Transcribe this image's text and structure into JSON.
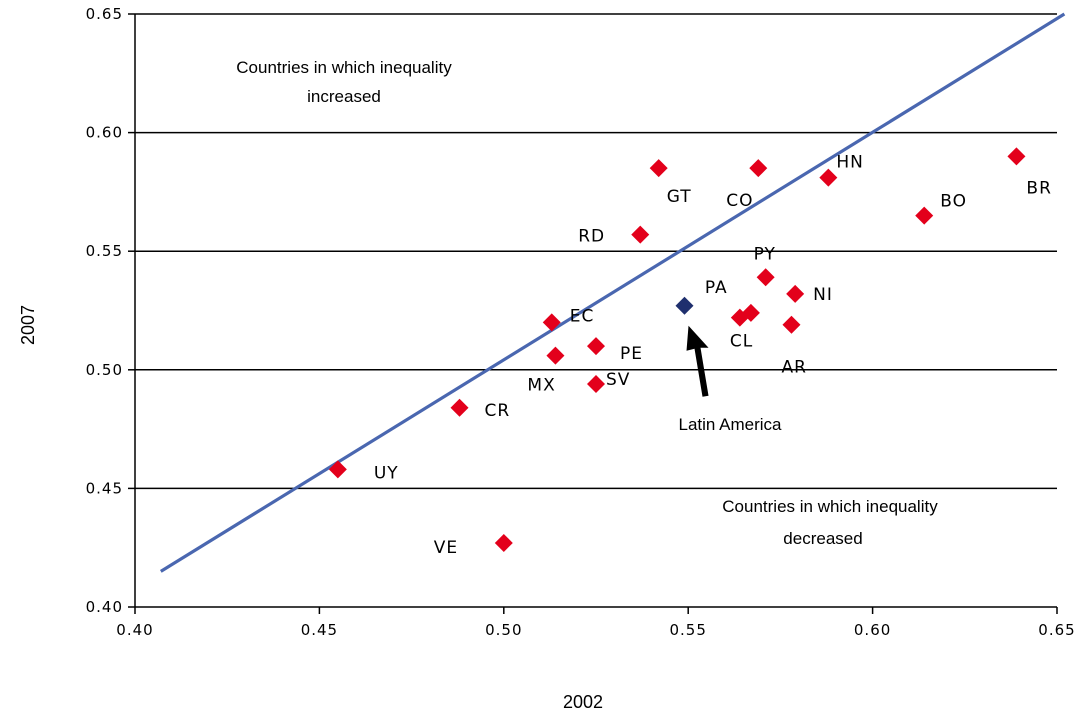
{
  "chart_data": {
    "type": "scatter",
    "xlabel": "2002",
    "ylabel": "2007",
    "xlim": [
      0.4,
      0.65
    ],
    "ylim": [
      0.4,
      0.65
    ],
    "xticks": [
      "0.40",
      "0.45",
      "0.50",
      "0.55",
      "0.60",
      "0.65"
    ],
    "yticks": [
      "0.40",
      "0.45",
      "0.50",
      "0.55",
      "0.60",
      "0.65"
    ],
    "grid": "horizontal",
    "colors": {
      "country": "#e3001b",
      "region": "#1f2f6e",
      "line": "#4a67b0"
    },
    "points": [
      {
        "label": "GT",
        "x": 0.542,
        "y": 0.585
      },
      {
        "label": "CO",
        "x": 0.569,
        "y": 0.585
      },
      {
        "label": "HN",
        "x": 0.588,
        "y": 0.581
      },
      {
        "label": "BR",
        "x": 0.639,
        "y": 0.59
      },
      {
        "label": "BO",
        "x": 0.614,
        "y": 0.565
      },
      {
        "label": "RD",
        "x": 0.537,
        "y": 0.557
      },
      {
        "label": "PY",
        "x": 0.571,
        "y": 0.539
      },
      {
        "label": "NI",
        "x": 0.579,
        "y": 0.532
      },
      {
        "label": "PA",
        "x": 0.567,
        "y": 0.524
      },
      {
        "label": "CL",
        "x": 0.564,
        "y": 0.522
      },
      {
        "label": "AR",
        "x": 0.578,
        "y": 0.519
      },
      {
        "label": "EC",
        "x": 0.513,
        "y": 0.52
      },
      {
        "label": "PE",
        "x": 0.525,
        "y": 0.51
      },
      {
        "label": "MX",
        "x": 0.514,
        "y": 0.506
      },
      {
        "label": "SV",
        "x": 0.525,
        "y": 0.494
      },
      {
        "label": "CR",
        "x": 0.488,
        "y": 0.484
      },
      {
        "label": "UY",
        "x": 0.455,
        "y": 0.458
      },
      {
        "label": "VE",
        "x": 0.5,
        "y": 0.427
      }
    ],
    "region_point": {
      "label": "Latin America",
      "x": 0.549,
      "y": 0.527
    },
    "line": {
      "x": [
        0.407,
        0.652
      ],
      "y": [
        0.415,
        0.65
      ]
    },
    "annotations": {
      "increased": [
        "Countries in which inequality",
        "increased"
      ],
      "decreased": [
        "Countries in which inequality",
        "decreased"
      ]
    }
  }
}
